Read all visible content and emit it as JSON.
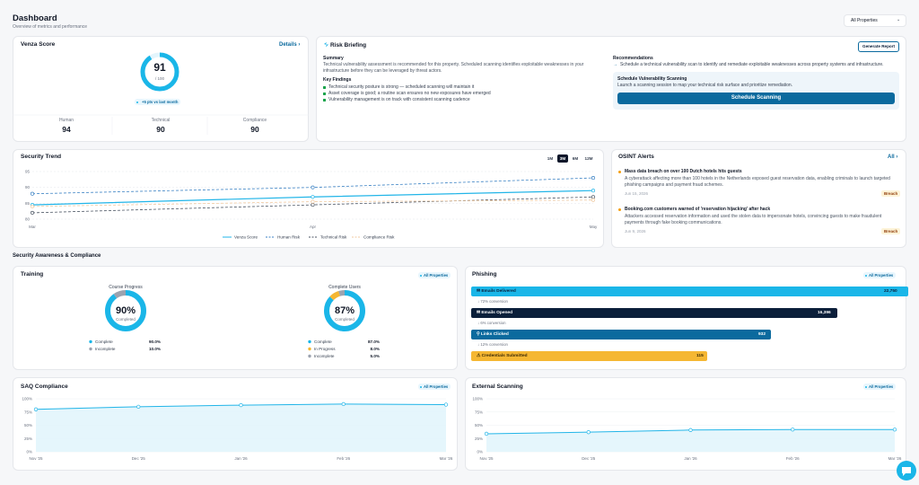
{
  "header": {
    "title": "Dashboard",
    "subtitle": "Overview of metrics and performance",
    "filter": "All Properties"
  },
  "venza": {
    "type": "gauge",
    "title": "Venza Score",
    "link": "Details",
    "value": 91,
    "max_label": "/ 100",
    "ylim": [
      0,
      100
    ],
    "color": "#1ab6e8",
    "change": "+5 pts vs last month",
    "subscores": [
      {
        "label": "Human",
        "value": 94
      },
      {
        "label": "Technical",
        "value": 90
      },
      {
        "label": "Compliance",
        "value": 90
      }
    ]
  },
  "risk": {
    "title": "Risk Briefing",
    "action": "Generate Report",
    "summary_title": "Summary",
    "summary": "Technical vulnerability assessment is recommended for this property. Scheduled scanning identifies exploitable weaknesses in your infrastructure before they can be leveraged by threat actors.",
    "findings_title": "Key Findings",
    "findings": [
      "Technical security posture is strong — scheduled scanning will maintain it",
      "Asset coverage is good; a routine scan ensures no new exposures have emerged",
      "Vulnerability management is on track with consistent scanning cadence"
    ],
    "recommendations_title": "Recommendations",
    "recommendations": [
      "Schedule a technical vulnerability scan to identify and remediate exploitable weaknesses across property systems and infrastructure."
    ],
    "cta": {
      "title": "Schedule Vulnerability Scanning",
      "text": "Launch a scanning session to map your technical risk surface and prioritize remediation.",
      "button": "Schedule Scanning"
    }
  },
  "trend": {
    "type": "line",
    "title": "Security Trend",
    "ranges": [
      "1M",
      "3M",
      "6M",
      "12M"
    ],
    "active_range": 1,
    "categories": [
      "Mar",
      "Apr",
      "May"
    ],
    "ylim": [
      80,
      95
    ],
    "yticks": [
      80,
      85,
      90,
      95
    ],
    "grid": true,
    "series": [
      {
        "name": "Venza Score",
        "color": "#22b5e8",
        "dashed": false,
        "values": [
          84.5,
          87,
          89
        ]
      },
      {
        "name": "Human Risk",
        "color": "#3b82c4",
        "dashed": true,
        "values": [
          88,
          90,
          93
        ]
      },
      {
        "name": "Technical Risk",
        "color": "#4b5563",
        "dashed": true,
        "values": [
          82,
          84.5,
          87
        ]
      },
      {
        "name": "Compliance Risk",
        "color": "#f0c9a0",
        "dashed": true,
        "values": [
          84,
          85.5,
          86
        ]
      }
    ]
  },
  "osint": {
    "title": "OSINT Alerts",
    "link": "All",
    "items": [
      {
        "title": "Mass data breach on over 100 Dutch hotels hits guests",
        "text": "A cyberattack affecting more than 100 hotels in the Netherlands exposed guest reservation data, enabling criminals to launch targeted phishing campaigns and payment fraud schemes.",
        "date": "Jun 15, 2026",
        "tag": "Breach"
      },
      {
        "title": "Booking.com customers warned of 'reservation hijacking' after hack",
        "text": "Attackers accessed reservation information and used the stolen data to impersonate hotels, convincing guests to make fraudulent payments through fake booking communications.",
        "date": "Jun 9, 2026",
        "tag": "Breach"
      }
    ]
  },
  "section_title": "Security Awareness & Compliance",
  "training": {
    "title": "Training",
    "scope": "All Properties",
    "charts": [
      {
        "type": "donut",
        "title": "Course Progress",
        "center_label": "90%",
        "center_caption": "Completed",
        "categories": [
          "Complete",
          "Incomplete"
        ],
        "values": [
          90,
          10
        ],
        "value_labels": [
          "90.0%",
          "10.0%"
        ],
        "colors": [
          "#1ab6e8",
          "#9ca3af"
        ]
      },
      {
        "type": "donut",
        "title": "Complete Users",
        "center_label": "87%",
        "center_caption": "Completed",
        "categories": [
          "Complete",
          "In Progress",
          "Incomplete"
        ],
        "values": [
          87,
          8,
          5
        ],
        "value_labels": [
          "87.0%",
          "8.0%",
          "5.0%"
        ],
        "colors": [
          "#1ab6e8",
          "#f5b733",
          "#9ca3af"
        ]
      }
    ]
  },
  "phishing": {
    "title": "Phishing",
    "scope": "All Properties",
    "stages": [
      {
        "label": "Emails Delivered",
        "value": "22,750",
        "color": "#1ab6e8"
      },
      {
        "label": "Emails Opened",
        "value": "16,396",
        "color": "#0b1f3a"
      },
      {
        "label": "Links Clicked",
        "value": "932",
        "color": "#0b6a9e"
      },
      {
        "label": "Credentials Submitted",
        "value": "115",
        "color": "#f5b733"
      }
    ],
    "conversions": [
      "72% conversion",
      "6% conversion",
      "12% conversion"
    ]
  },
  "saq": {
    "type": "area",
    "title": "SAQ Compliance",
    "scope": "All Properties",
    "categories": [
      "Nov '25",
      "Dec '25",
      "Jan '26",
      "Feb '26",
      "Mar '26"
    ],
    "values": [
      80,
      85,
      88,
      90,
      89
    ],
    "color": "#22b5e8",
    "ylim": [
      0,
      100
    ],
    "yticks": [
      {
        "value": 0,
        "label": "0%"
      },
      {
        "value": 25,
        "label": "25%"
      },
      {
        "value": 50,
        "label": "50%"
      },
      {
        "value": 75,
        "label": "75%"
      },
      {
        "value": 100,
        "label": "100%"
      }
    ],
    "grid": true
  },
  "external": {
    "type": "area",
    "title": "External Scanning",
    "scope": "All Properties",
    "categories": [
      "Nov '25",
      "Dec '25",
      "Jan '26",
      "Feb '26",
      "Mar '26"
    ],
    "values": [
      34,
      37,
      41,
      42,
      42
    ],
    "color": "#22b5e8",
    "ylim": [
      0,
      100
    ],
    "yticks": [
      {
        "value": 0,
        "label": "0%"
      },
      {
        "value": 25,
        "label": "25%"
      },
      {
        "value": 50,
        "label": "50%"
      },
      {
        "value": 75,
        "label": "75%"
      },
      {
        "value": 100,
        "label": "100%"
      }
    ],
    "grid": true
  }
}
